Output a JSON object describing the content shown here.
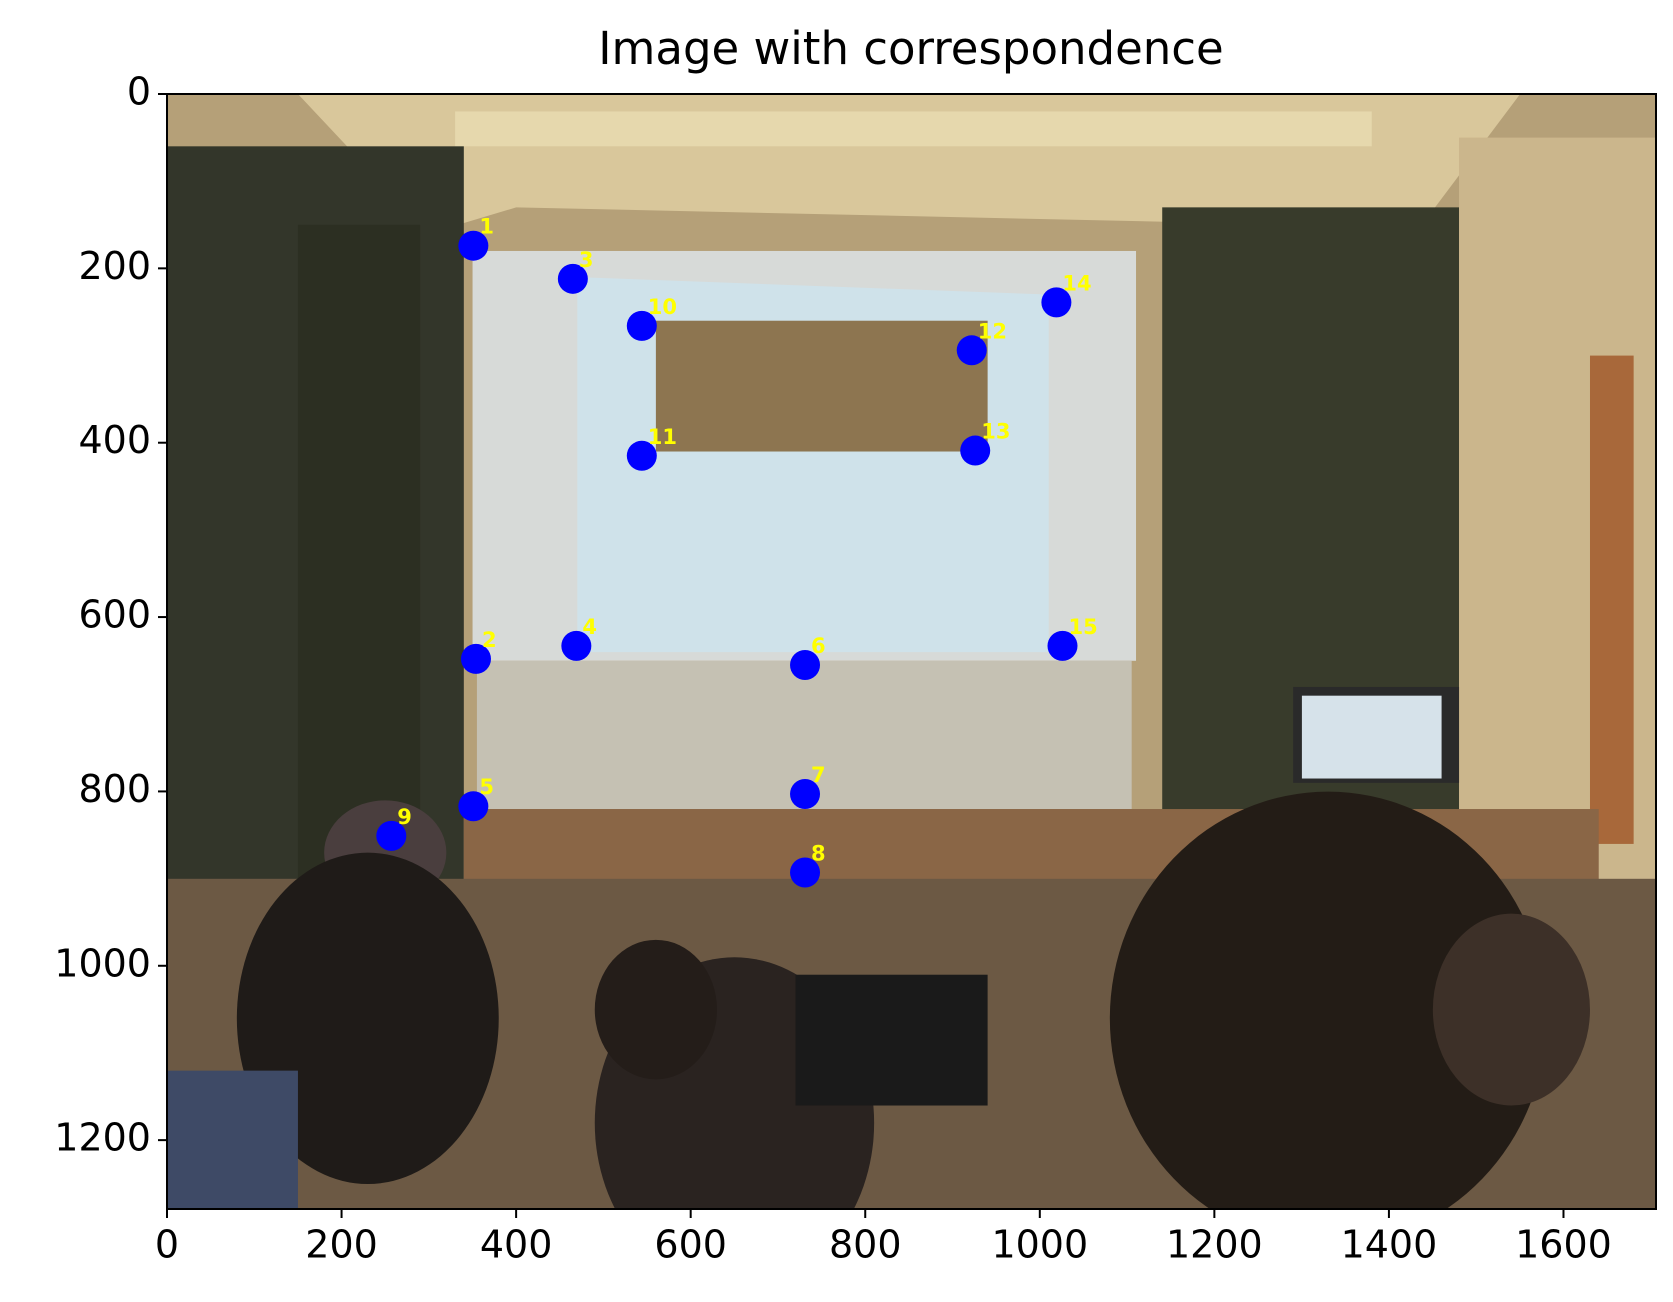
{
  "chart_data": {
    "type": "scatter",
    "title": "Image with correspondence",
    "x": [
      351,
      354,
      465,
      469,
      351,
      731,
      731,
      731,
      257,
      544,
      544,
      922,
      926,
      1019,
      1026
    ],
    "series": [
      {
        "color": "#0000ff",
        "label_color": "#ffff00",
        "values": [
          174,
          648,
          212,
          633,
          817,
          655,
          803,
          893,
          851,
          266,
          415,
          294,
          409,
          239,
          633
        ],
        "labels": [
          "1",
          "2",
          "3",
          "4",
          "5",
          "6",
          "7",
          "8",
          "9",
          "10",
          "11",
          "12",
          "13",
          "14",
          "15"
        ]
      }
    ],
    "xlim": [
      0,
      1706
    ],
    "ylim": [
      1279,
      0
    ],
    "xticks": [
      0,
      200,
      400,
      600,
      800,
      1000,
      1200,
      1400,
      1600
    ],
    "yticks": [
      0,
      200,
      400,
      600,
      800,
      1000,
      1200
    ]
  }
}
